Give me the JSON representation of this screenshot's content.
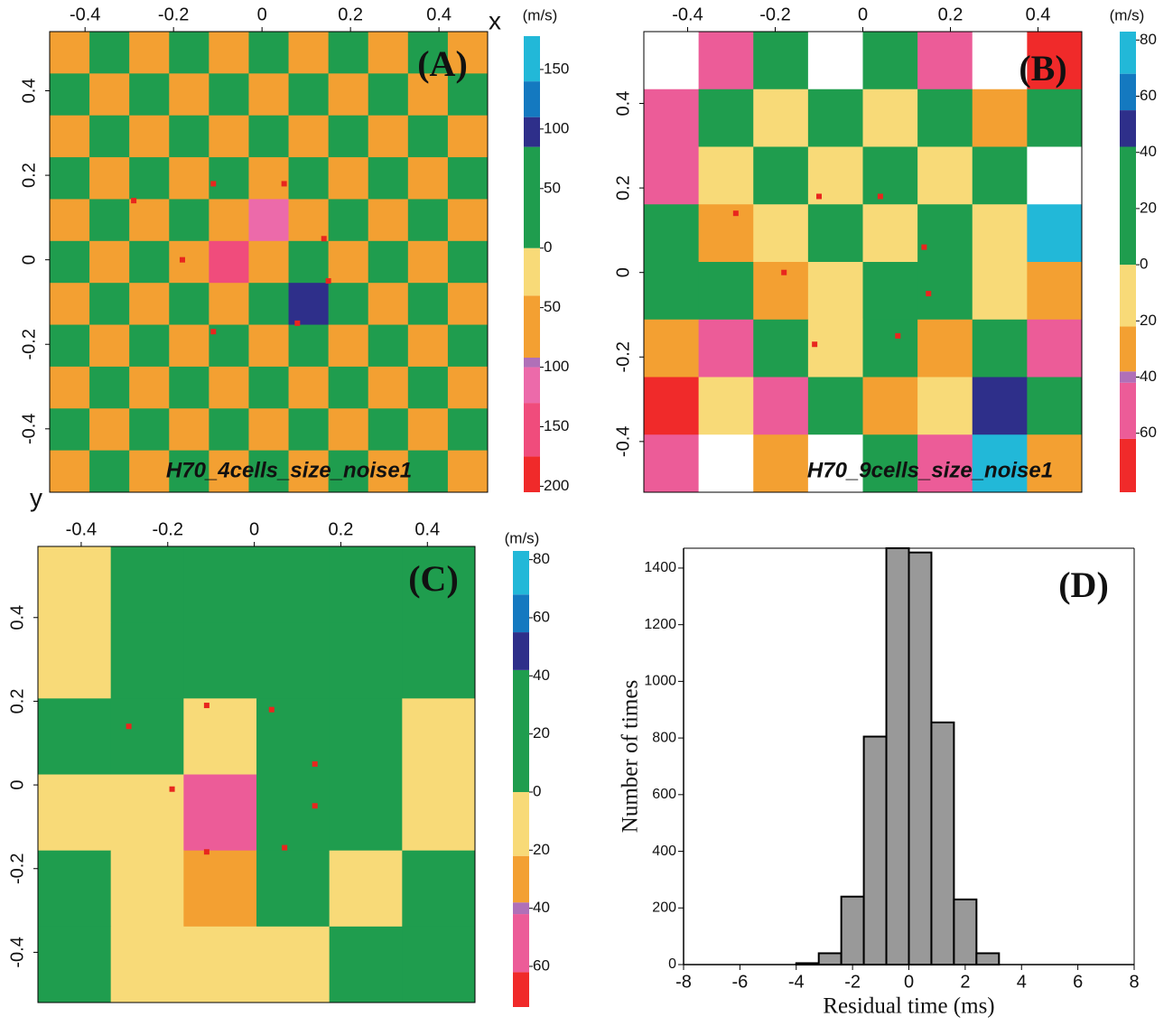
{
  "chart_data": [
    {
      "type": "heatmap",
      "title": "(A)",
      "annotation": "H70_4cells_size_noise1",
      "xlabel": "x",
      "ylabel": "y",
      "colorbar_label": "(m/s)",
      "xlim": [
        -0.48,
        0.51
      ],
      "ylim": [
        -0.55,
        0.54
      ],
      "xticks": [
        -0.4,
        -0.2,
        0,
        0.2,
        0.4
      ],
      "yticks": [
        -0.4,
        -0.2,
        0,
        0.2,
        0.4
      ],
      "clim": [
        -205,
        178
      ],
      "colorbar": {
        "levels": [
          -205,
          -175,
          -130,
          -100,
          -92,
          -40,
          0,
          85,
          110,
          140,
          178
        ],
        "colors": [
          "#f02a2a",
          "#f04c7c",
          "#ec6aaa",
          "#b070b8",
          "#f3a032",
          "#f8da78",
          "#1f9d4e",
          "#2e2f8a",
          "#1479c0",
          "#22b8d8"
        ],
        "ticks": [
          150,
          100,
          50,
          0,
          {
            "value": -50,
            "label": "50"
          },
          {
            "value": -100,
            "label": "100"
          },
          {
            "value": -150,
            "label": "150"
          },
          {
            "value": -200,
            "label": "200"
          }
        ]
      },
      "z": [
        [
          -60,
          30,
          -60,
          30,
          -60,
          30,
          -60,
          30,
          -60,
          30,
          -60
        ],
        [
          30,
          -60,
          30,
          -60,
          30,
          -60,
          30,
          -60,
          30,
          -60,
          30
        ],
        [
          -60,
          30,
          -60,
          30,
          -60,
          30,
          -60,
          30,
          -60,
          30,
          -60
        ],
        [
          30,
          -60,
          30,
          -60,
          30,
          -60,
          30,
          -60,
          30,
          -60,
          30
        ],
        [
          -60,
          30,
          -60,
          30,
          -60,
          -120,
          -60,
          30,
          -60,
          30,
          -60
        ],
        [
          30,
          -60,
          30,
          -60,
          -140,
          -60,
          30,
          -60,
          30,
          -60,
          30
        ],
        [
          -60,
          30,
          -60,
          30,
          -60,
          30,
          95,
          30,
          -60,
          30,
          -60
        ],
        [
          30,
          -60,
          30,
          -60,
          30,
          -60,
          30,
          -60,
          30,
          -60,
          30
        ],
        [
          -60,
          30,
          -60,
          30,
          -60,
          30,
          -60,
          30,
          -60,
          30,
          -60
        ],
        [
          30,
          -60,
          30,
          -60,
          30,
          -60,
          30,
          -60,
          30,
          -60,
          30
        ],
        [
          -60,
          30,
          -60,
          30,
          -60,
          30,
          -60,
          30,
          -60,
          30,
          -60
        ]
      ],
      "stations": {
        "color": "#e8261e",
        "x": [
          -0.29,
          -0.11,
          0.05,
          0.14,
          -0.18,
          0.15,
          0.08,
          -0.11
        ],
        "y": [
          0.14,
          0.18,
          0.18,
          0.05,
          0.0,
          -0.05,
          -0.15,
          -0.17
        ]
      }
    },
    {
      "type": "heatmap",
      "title": "(B)",
      "annotation": "H70_9cells_size_noise1",
      "colorbar_label": "(m/s)",
      "xlim": [
        -0.5,
        0.5
      ],
      "ylim": [
        -0.52,
        0.57
      ],
      "xticks": [
        -0.4,
        -0.2,
        0,
        0.2,
        0.4
      ],
      "yticks": [
        -0.4,
        -0.2,
        0,
        0.2,
        0.4
      ],
      "clim": [
        -81,
        83
      ],
      "colorbar": {
        "levels": [
          -81,
          -62,
          -42,
          -38,
          -22,
          0,
          42,
          55,
          68,
          83
        ],
        "colors": [
          "#f02a2a",
          "#ec5c98",
          "#b070b8",
          "#f3a032",
          "#f8da78",
          "#1f9d4e",
          "#2e2f8a",
          "#1479c0",
          "#22b8d8"
        ],
        "ticks": [
          80,
          60,
          40,
          20,
          0,
          {
            "value": -20,
            "label": "20"
          },
          {
            "value": -40,
            "label": "40"
          },
          {
            "value": -60,
            "label": "60"
          }
        ]
      },
      "z": [
        [
          -90,
          -60,
          15,
          -90,
          15,
          -60,
          -90,
          -70
        ],
        [
          -55,
          15,
          -20,
          15,
          -20,
          15,
          -30,
          15
        ],
        [
          -60,
          -20,
          15,
          -20,
          15,
          -20,
          15,
          -90
        ],
        [
          15,
          -30,
          -20,
          15,
          -20,
          15,
          -20,
          70
        ],
        [
          15,
          15,
          -30,
          -20,
          15,
          15,
          -20,
          -30
        ],
        [
          -30,
          -50,
          15,
          -20,
          15,
          -30,
          15,
          -55
        ],
        [
          -70,
          -20,
          -60,
          15,
          -30,
          -20,
          50,
          15
        ],
        [
          -60,
          -90,
          -30,
          -90,
          15,
          -55,
          75,
          -30
        ]
      ],
      "stations": {
        "color": "#e8261e",
        "x": [
          -0.29,
          -0.1,
          0.04,
          0.14,
          -0.18,
          0.15,
          0.08,
          -0.11
        ],
        "y": [
          0.14,
          0.18,
          0.18,
          0.06,
          0.0,
          -0.05,
          -0.15,
          -0.17
        ]
      }
    },
    {
      "type": "heatmap",
      "title": "(C)",
      "colorbar_label": "(m/s)",
      "xlim": [
        -0.5,
        0.51
      ],
      "ylim": [
        -0.52,
        0.57
      ],
      "xticks": [
        -0.4,
        -0.2,
        0,
        0.2,
        0.4
      ],
      "yticks": [
        -0.4,
        -0.2,
        0,
        0.2,
        0.4
      ],
      "clim": [
        -74,
        83
      ],
      "colorbar": {
        "levels": [
          -74,
          -62,
          -42,
          -38,
          -22,
          0,
          42,
          55,
          68,
          83
        ],
        "colors": [
          "#f02a2a",
          "#ec5c98",
          "#b070b8",
          "#f3a032",
          "#f8da78",
          "#1f9d4e",
          "#2e2f8a",
          "#1479c0",
          "#22b8d8"
        ],
        "ticks": [
          80,
          60,
          40,
          20,
          0,
          {
            "value": -20,
            "label": "20"
          },
          {
            "value": -40,
            "label": "40"
          },
          {
            "value": -60,
            "label": "60"
          }
        ]
      },
      "z": [
        [
          -10,
          10,
          10,
          10,
          10,
          10
        ],
        [
          -10,
          10,
          10,
          10,
          10,
          10
        ],
        [
          10,
          10,
          -10,
          10,
          10,
          -10
        ],
        [
          -10,
          -10,
          -55,
          25,
          10,
          -10
        ],
        [
          10,
          -10,
          -30,
          10,
          -10,
          10
        ],
        [
          10,
          -10,
          -10,
          -10,
          10,
          10
        ]
      ],
      "stations": {
        "color": "#e8261e",
        "x": [
          -0.29,
          -0.11,
          0.04,
          0.14,
          -0.19,
          0.14,
          0.07,
          -0.11
        ],
        "y": [
          0.14,
          0.19,
          0.18,
          0.05,
          -0.01,
          -0.05,
          -0.15,
          -0.16
        ]
      }
    },
    {
      "type": "histogram",
      "title": "(D)",
      "xlabel": "Residual time (ms)",
      "ylabel": "Number of times",
      "bins": [
        -4,
        -3.2,
        -2.4,
        -1.6,
        -0.8,
        0,
        0.8,
        1.6,
        2.4,
        3.2
      ],
      "values": [
        5,
        40,
        240,
        805,
        1470,
        1455,
        855,
        230,
        40
      ],
      "color": "#999999",
      "xlim": [
        -8,
        8
      ],
      "ylim": [
        0,
        1470
      ],
      "xticks": [
        -8,
        -6,
        -4,
        -2,
        0,
        2,
        4,
        6,
        8
      ],
      "yticks": [
        0,
        200,
        400,
        600,
        800,
        1000,
        1200,
        1400
      ]
    }
  ]
}
